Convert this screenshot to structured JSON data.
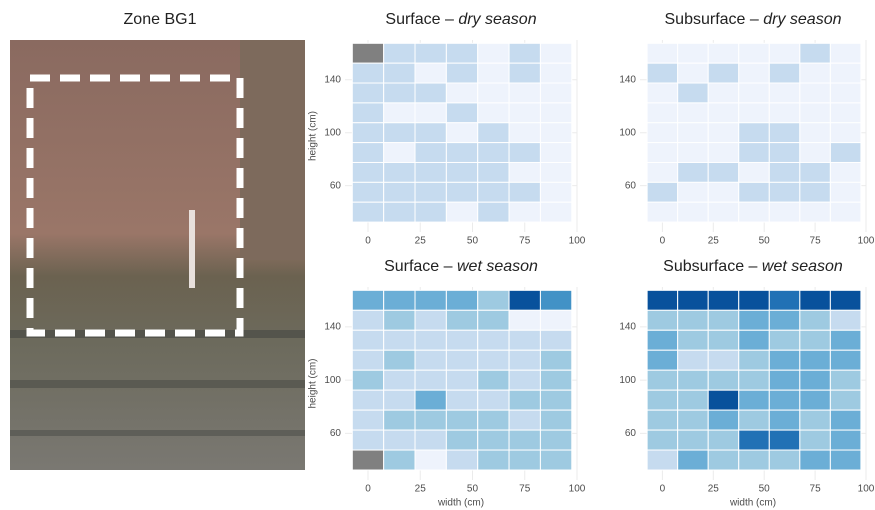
{
  "zone_title": "Zone BG1",
  "chart_data": [
    {
      "type": "heatmap",
      "title": "Surface – ",
      "title_italic": "dry season",
      "y_label": "height (cm)",
      "x": [
        0,
        15,
        30,
        45,
        60,
        75,
        90
      ],
      "y": [
        160,
        145,
        130,
        115,
        100,
        85,
        70,
        55,
        40
      ],
      "values": [
        [
          null,
          1,
          1,
          1,
          0,
          1,
          0
        ],
        [
          1,
          1,
          0,
          1,
          0,
          1,
          0
        ],
        [
          1,
          1,
          1,
          0,
          0,
          0,
          0
        ],
        [
          1,
          0,
          0,
          1,
          0,
          0,
          0
        ],
        [
          1,
          1,
          1,
          0,
          1,
          0,
          0
        ],
        [
          1,
          0,
          1,
          1,
          1,
          1,
          0
        ],
        [
          1,
          1,
          1,
          1,
          1,
          0,
          0
        ],
        [
          1,
          1,
          1,
          1,
          1,
          1,
          0
        ],
        [
          1,
          1,
          1,
          0,
          1,
          0,
          0
        ]
      ],
      "xlim": [
        -11,
        100
      ],
      "ylim": [
        25,
        170
      ],
      "xticks": [
        0,
        25,
        50,
        75,
        100
      ],
      "yticks": [
        60,
        100,
        140
      ],
      "palette": [
        "#eef3fc",
        "#c6dbef",
        "#9ecae1",
        "#6baed6",
        "#4292c6",
        "#2171b5",
        "#08519c"
      ],
      "missing_color": "#808080"
    },
    {
      "type": "heatmap",
      "title": "Subsurface – ",
      "title_italic": "dry season",
      "x": [
        0,
        15,
        30,
        45,
        60,
        75,
        90
      ],
      "y": [
        160,
        145,
        130,
        115,
        100,
        85,
        70,
        55,
        40
      ],
      "values": [
        [
          0,
          0,
          0,
          0,
          0,
          1,
          0
        ],
        [
          1,
          0,
          1,
          0,
          1,
          0,
          0
        ],
        [
          0,
          1,
          0,
          0,
          0,
          0,
          0
        ],
        [
          0,
          0,
          0,
          0,
          0,
          0,
          0
        ],
        [
          0,
          0,
          0,
          1,
          1,
          0,
          0
        ],
        [
          0,
          0,
          0,
          1,
          1,
          0,
          1
        ],
        [
          0,
          1,
          1,
          0,
          1,
          1,
          0
        ],
        [
          1,
          0,
          0,
          1,
          1,
          1,
          0
        ],
        [
          0,
          0,
          0,
          0,
          0,
          0,
          0
        ]
      ],
      "xlim": [
        -11,
        100
      ],
      "ylim": [
        25,
        170
      ],
      "xticks": [
        0,
        25,
        50,
        75,
        100
      ],
      "yticks": [
        60,
        100,
        140
      ],
      "palette": [
        "#eef3fc",
        "#c6dbef",
        "#9ecae1",
        "#6baed6",
        "#4292c6",
        "#2171b5",
        "#08519c"
      ],
      "missing_color": "#808080"
    },
    {
      "type": "heatmap",
      "title": "Surface – ",
      "title_italic": "wet season",
      "y_label": "height (cm)",
      "x_label": "width (cm)",
      "x": [
        0,
        15,
        30,
        45,
        60,
        75,
        90
      ],
      "y": [
        160,
        145,
        130,
        115,
        100,
        85,
        70,
        55,
        40
      ],
      "values": [
        [
          3,
          3,
          3,
          3,
          2,
          6,
          4
        ],
        [
          1,
          2,
          1,
          2,
          2,
          0,
          0
        ],
        [
          1,
          1,
          1,
          1,
          1,
          1,
          1
        ],
        [
          1,
          2,
          1,
          1,
          1,
          1,
          2
        ],
        [
          2,
          1,
          1,
          1,
          2,
          1,
          2
        ],
        [
          1,
          1,
          3,
          1,
          1,
          2,
          2
        ],
        [
          1,
          2,
          2,
          2,
          2,
          1,
          2
        ],
        [
          1,
          1,
          1,
          2,
          2,
          2,
          2
        ],
        [
          null,
          2,
          0,
          1,
          2,
          2,
          2
        ]
      ],
      "xlim": [
        -11,
        100
      ],
      "ylim": [
        25,
        170
      ],
      "xticks": [
        0,
        25,
        50,
        75,
        100
      ],
      "yticks": [
        60,
        100,
        140
      ],
      "palette": [
        "#eef3fc",
        "#c6dbef",
        "#9ecae1",
        "#6baed6",
        "#4292c6",
        "#2171b5",
        "#08519c"
      ],
      "missing_color": "#808080"
    },
    {
      "type": "heatmap",
      "title": "Subsurface – ",
      "title_italic": "wet season",
      "x_label": "width (cm)",
      "x": [
        0,
        15,
        30,
        45,
        60,
        75,
        90
      ],
      "y": [
        160,
        145,
        130,
        115,
        100,
        85,
        70,
        55,
        40
      ],
      "values": [
        [
          6,
          6,
          6,
          6,
          5,
          6,
          6
        ],
        [
          2,
          2,
          2,
          3,
          3,
          2,
          1
        ],
        [
          3,
          2,
          2,
          3,
          2,
          2,
          3
        ],
        [
          3,
          1,
          1,
          2,
          3,
          3,
          3
        ],
        [
          2,
          2,
          2,
          2,
          3,
          3,
          2
        ],
        [
          2,
          2,
          6,
          3,
          3,
          3,
          2
        ],
        [
          2,
          2,
          3,
          2,
          3,
          2,
          3
        ],
        [
          2,
          2,
          2,
          5,
          5,
          2,
          3
        ],
        [
          1,
          3,
          2,
          2,
          2,
          3,
          3
        ]
      ],
      "xlim": [
        -11,
        100
      ],
      "ylim": [
        25,
        170
      ],
      "xticks": [
        0,
        25,
        50,
        75,
        100
      ],
      "yticks": [
        60,
        100,
        140
      ],
      "palette": [
        "#eef3fc",
        "#c6dbef",
        "#9ecae1",
        "#6baed6",
        "#4292c6",
        "#2171b5",
        "#08519c"
      ],
      "missing_color": "#808080"
    }
  ]
}
